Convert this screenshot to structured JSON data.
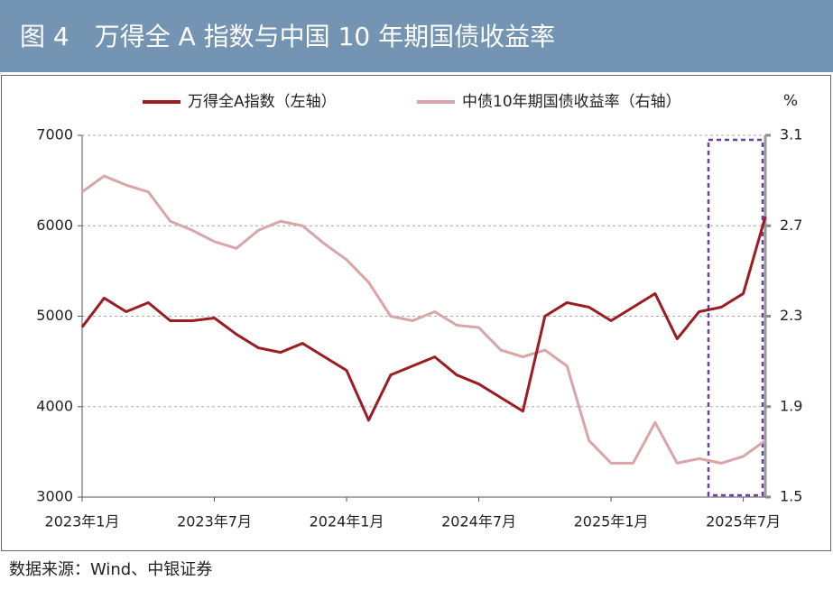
{
  "chart_data": {
    "type": "line",
    "title": "图 4　万得全 A 指数与中国 10 年期国债收益率",
    "source": "数据来源：Wind、中银证券",
    "y2label": "%",
    "x": [
      "2023-01",
      "2023-02",
      "2023-03",
      "2023-04",
      "2023-05",
      "2023-06",
      "2023-07",
      "2023-08",
      "2023-09",
      "2023-10",
      "2023-11",
      "2023-12",
      "2024-01",
      "2024-02",
      "2024-03",
      "2024-04",
      "2024-05",
      "2024-06",
      "2024-07",
      "2024-08",
      "2024-09",
      "2024-10",
      "2024-11",
      "2024-12",
      "2025-01",
      "2025-02",
      "2025-03",
      "2025-04",
      "2025-05",
      "2025-06",
      "2025-07",
      "2025-08"
    ],
    "xlim": [
      "2023-01",
      "2025-08"
    ],
    "xticks": [
      {
        "value": "2023-01",
        "label": "2023年1月"
      },
      {
        "value": "2023-07",
        "label": "2023年7月"
      },
      {
        "value": "2024-01",
        "label": "2024年1月"
      },
      {
        "value": "2024-07",
        "label": "2024年7月"
      },
      {
        "value": "2025-01",
        "label": "2025年1月"
      },
      {
        "value": "2025-07",
        "label": "2025年7月"
      }
    ],
    "ylim": [
      3000,
      7000
    ],
    "yticks": [
      3000,
      4000,
      5000,
      6000,
      7000
    ],
    "y2lim": [
      1.5,
      3.1
    ],
    "y2ticks": [
      1.5,
      1.9,
      2.3,
      2.7,
      3.1
    ],
    "grid": true,
    "series": [
      {
        "name": "万得全A指数（左轴）",
        "color": "#9b1c22",
        "values": [
          4880,
          5200,
          5050,
          5150,
          4950,
          4950,
          4980,
          4800,
          4650,
          4600,
          4700,
          4550,
          4400,
          3850,
          4350,
          4450,
          4550,
          4350,
          4250,
          4100,
          3950,
          5000,
          5150,
          5100,
          4950,
          5100,
          5250,
          4750,
          5050,
          5100,
          5250,
          6100
        ]
      },
      {
        "name": "中债10年期国债收益率（右轴）",
        "color": "#d9a5a8",
        "axis": "y2",
        "values": [
          2.85,
          2.92,
          2.88,
          2.85,
          2.72,
          2.68,
          2.63,
          2.6,
          2.68,
          2.72,
          2.7,
          2.62,
          2.55,
          2.45,
          2.3,
          2.28,
          2.32,
          2.26,
          2.25,
          2.15,
          2.12,
          2.15,
          2.08,
          1.75,
          1.65,
          1.65,
          1.83,
          1.65,
          1.67,
          1.65,
          1.68,
          1.75
        ]
      }
    ]
  }
}
